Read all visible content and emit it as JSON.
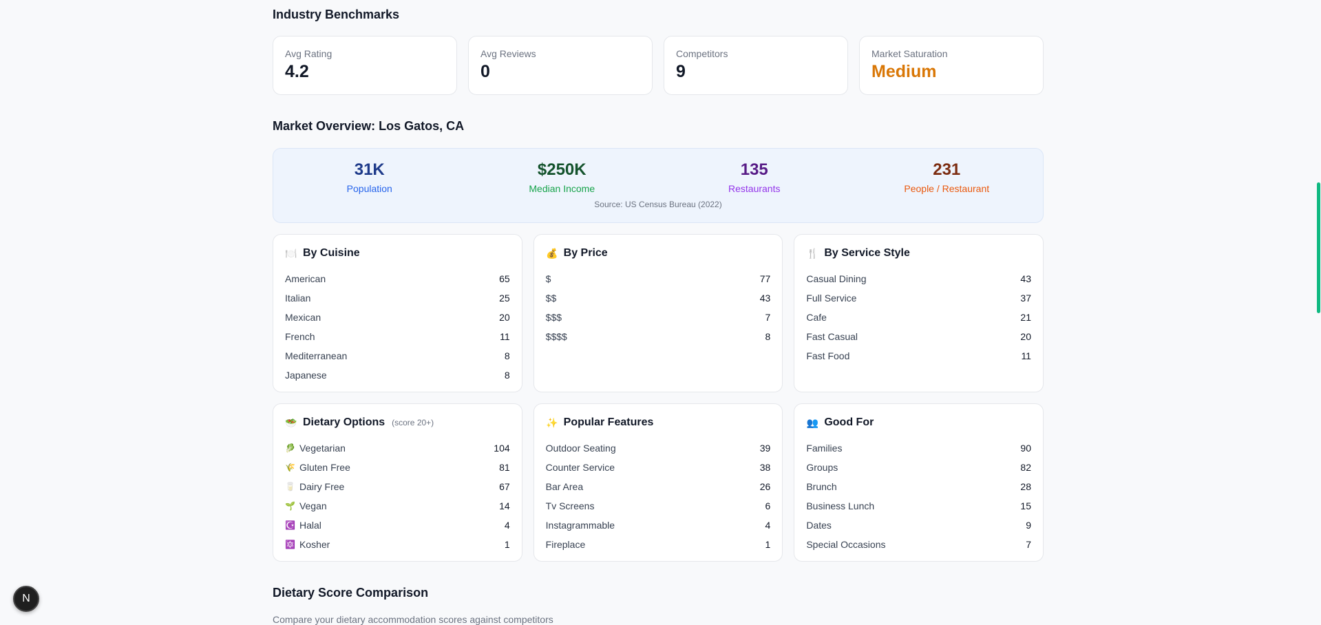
{
  "benchmarks": {
    "title": "Industry Benchmarks",
    "cards": [
      {
        "label": "Avg Rating",
        "value": "4.2"
      },
      {
        "label": "Avg Reviews",
        "value": "0"
      },
      {
        "label": "Competitors",
        "value": "9"
      },
      {
        "label": "Market Saturation",
        "value": "Medium"
      }
    ]
  },
  "overview": {
    "title": "Market Overview: Los Gatos, CA",
    "stats": [
      {
        "value": "31K",
        "label": "Population"
      },
      {
        "value": "$250K",
        "label": "Median Income"
      },
      {
        "value": "135",
        "label": "Restaurants"
      },
      {
        "value": "231",
        "label": "People / Restaurant"
      }
    ],
    "source": "Source: US Census Bureau (2022)"
  },
  "colors": {
    "saturation": "#d97706",
    "accent": "#10b981"
  },
  "sections": [
    {
      "title": "By Cuisine",
      "icon": "🍽️",
      "rows": [
        [
          "American",
          "65"
        ],
        [
          "Italian",
          "25"
        ],
        [
          "Mexican",
          "20"
        ],
        [
          "French",
          "11"
        ],
        [
          "Mediterranean",
          "8"
        ],
        [
          "Japanese",
          "8"
        ]
      ]
    },
    {
      "title": "By Price",
      "icon": "💰",
      "rows": [
        [
          "$",
          "77"
        ],
        [
          "$$",
          "43"
        ],
        [
          "$$$",
          "7"
        ],
        [
          "$$$$",
          "8"
        ]
      ]
    },
    {
      "title": "By Service Style",
      "icon": "🍴",
      "rows": [
        [
          "Casual Dining",
          "43"
        ],
        [
          "Full Service",
          "37"
        ],
        [
          "Cafe",
          "21"
        ],
        [
          "Fast Casual",
          "20"
        ],
        [
          "Fast Food",
          "11"
        ]
      ]
    },
    {
      "title": "Dietary Options",
      "subtitle": "(score 20+)",
      "icon": "🥗",
      "rows": [
        [
          "Vegetarian",
          "104",
          "🥬"
        ],
        [
          "Gluten Free",
          "81",
          "🌾"
        ],
        [
          "Dairy Free",
          "67",
          "🥛"
        ],
        [
          "Vegan",
          "14",
          "🌱"
        ],
        [
          "Halal",
          "4",
          "☪️"
        ],
        [
          "Kosher",
          "1",
          "🔯"
        ]
      ]
    },
    {
      "title": "Popular Features",
      "icon": "✨",
      "rows": [
        [
          "Outdoor Seating",
          "39"
        ],
        [
          "Counter Service",
          "38"
        ],
        [
          "Bar Area",
          "26"
        ],
        [
          "Tv Screens",
          "6"
        ],
        [
          "Instagrammable",
          "4"
        ],
        [
          "Fireplace",
          "1"
        ]
      ]
    },
    {
      "title": "Good For",
      "icon": "👥",
      "rows": [
        [
          "Families",
          "90"
        ],
        [
          "Groups",
          "82"
        ],
        [
          "Brunch",
          "28"
        ],
        [
          "Business Lunch",
          "15"
        ],
        [
          "Dates",
          "9"
        ],
        [
          "Special Occasions",
          "7"
        ]
      ]
    }
  ],
  "comparison": {
    "title": "Dietary Score Comparison",
    "description": "Compare your dietary accommodation scores against competitors"
  },
  "devtools": {
    "label": "N"
  }
}
